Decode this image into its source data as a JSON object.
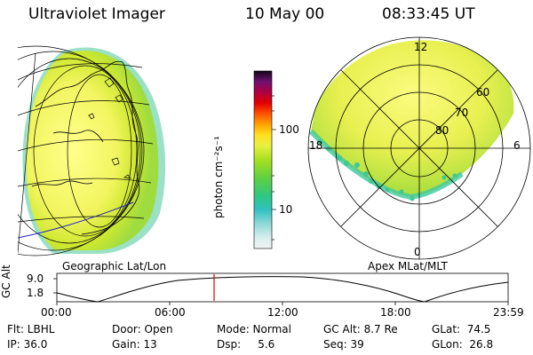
{
  "header": {
    "title": "Ultraviolet Imager",
    "date": "10 May 00",
    "time": "08:33:45 UT"
  },
  "colorbar": {
    "unit_label": "photon cm⁻²s⁻¹",
    "ticks": [
      "100",
      "10"
    ]
  },
  "panels": {
    "left_label": "Geographic Lat/Lon",
    "right_label": "Apex MLat/MLT"
  },
  "polar_plot": {
    "mlt_labels": {
      "top": "12",
      "left": "18",
      "right": "6",
      "bottom": "0"
    },
    "lat_labels": [
      "60",
      "70",
      "80"
    ]
  },
  "altitude_plot": {
    "y_title": "GC Alt",
    "y_ticks": [
      "9.0",
      "1.8"
    ],
    "x_ticks": [
      "00:00",
      "06:00",
      "12:00",
      "18:00",
      "23:59"
    ]
  },
  "info": {
    "flt": "Flt: LBHL",
    "ip": "IP: 36.0",
    "door": "Door: Open",
    "gain": "Gain: 13",
    "mode": "Mode: Normal",
    "dsp": "Dsp:     5.6",
    "gcalt": "GC Alt: 8.7 Re",
    "seq": "Seq: 39",
    "glat": "GLat:  74.5",
    "glon": "GLon:  26.8"
  },
  "colors": {
    "marker": "#e00000",
    "coast": "#000000",
    "track": "#2020c0"
  }
}
